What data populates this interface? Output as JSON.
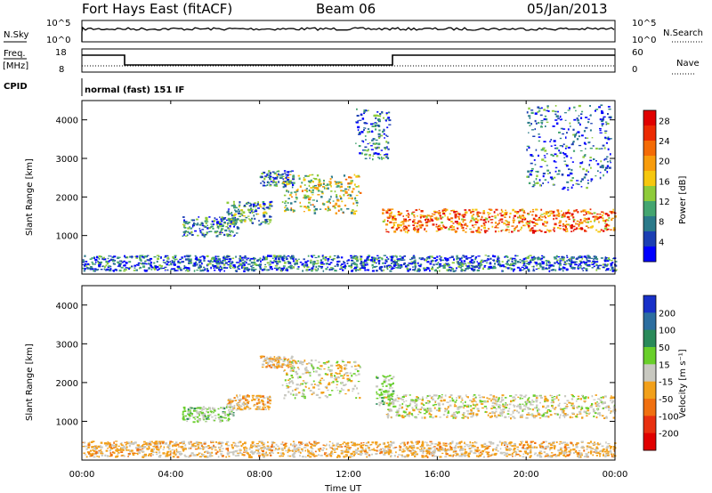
{
  "header": {
    "station": "Fort Hays East (fitACF)",
    "beam": "Beam 06",
    "date": "05/Jan/2013"
  },
  "sky_panel": {
    "left_label": "N.Sky",
    "right_label": "N.Search",
    "left_ticks": [
      "10^5",
      "10^0"
    ],
    "right_ticks": [
      "10^5",
      "10^0"
    ]
  },
  "freq_panel": {
    "left_label_top": "Freq.",
    "left_label_bottom": "[MHz]",
    "right_label": "Nave",
    "left_ticks": [
      "18",
      "8"
    ],
    "right_ticks": [
      "60",
      "0"
    ]
  },
  "cpid": {
    "label": "CPID",
    "value": "normal (fast) 151 IF"
  },
  "axes": {
    "ylabel": "Slant Range [km]",
    "xlabel": "Time UT",
    "xticks": [
      "00:00",
      "04:00",
      "08:00",
      "12:00",
      "16:00",
      "20:00",
      "00:00"
    ],
    "yticks": [
      "1000",
      "2000",
      "3000",
      "4000"
    ]
  },
  "chart_data": [
    {
      "type": "heatmap",
      "name": "power",
      "x_range_hours": [
        0,
        24
      ],
      "ylim": [
        0,
        4500
      ],
      "colorbar": {
        "label": "Power [dB]",
        "ticks": [
          "4",
          "8",
          "12",
          "16",
          "20",
          "24",
          "28"
        ],
        "range": [
          0,
          30
        ],
        "colors": [
          "#0000ff",
          "#1c3fb3",
          "#2b7a8a",
          "#44a570",
          "#8ecb3a",
          "#f6c70e",
          "#f89c0c",
          "#f46b06",
          "#ec2a02",
          "#e00000"
        ]
      },
      "echo_regions": [
        {
          "t": [
            4.5,
            7.0
          ],
          "range": [
            1000,
            1500
          ],
          "power": 8
        },
        {
          "t": [
            6.5,
            8.5
          ],
          "range": [
            1300,
            1900
          ],
          "power": 9
        },
        {
          "t": [
            8.0,
            9.5
          ],
          "range": [
            2300,
            2700
          ],
          "power": 8
        },
        {
          "t": [
            9.0,
            12.5
          ],
          "range": [
            1600,
            2600
          ],
          "power": 14
        },
        {
          "t": [
            12.3,
            13.8
          ],
          "range": [
            3000,
            4300
          ],
          "power": 7
        },
        {
          "t": [
            13.5,
            24.0
          ],
          "range": [
            1100,
            1700
          ],
          "power": 22
        },
        {
          "t": [
            20.0,
            23.8
          ],
          "range": [
            2200,
            4400
          ],
          "power": 6
        },
        {
          "t": [
            0.0,
            24.0
          ],
          "range": [
            100,
            500
          ],
          "power": 6
        }
      ]
    },
    {
      "type": "heatmap",
      "name": "velocity",
      "x_range_hours": [
        0,
        24
      ],
      "ylim": [
        0,
        4500
      ],
      "colorbar": {
        "label": "Velocity [m s⁻¹]",
        "ticks": [
          "200",
          "100",
          "50",
          "15",
          "-15",
          "-50",
          "-100",
          "-200"
        ],
        "colors": [
          "#1830c8",
          "#2c6ea0",
          "#2a8a5a",
          "#69cf2a",
          "#c8c8c0",
          "#f2a01a",
          "#f07010",
          "#e83010",
          "#e00000"
        ]
      },
      "echo_regions": [
        {
          "t": [
            4.5,
            6.8
          ],
          "range": [
            1000,
            1400
          ],
          "velocity": 40
        },
        {
          "t": [
            6.5,
            8.5
          ],
          "range": [
            1300,
            1700
          ],
          "velocity": -40
        },
        {
          "t": [
            8.0,
            9.5
          ],
          "range": [
            2400,
            2700
          ],
          "velocity": -40
        },
        {
          "t": [
            9.0,
            12.5
          ],
          "range": [
            1600,
            2600
          ],
          "velocity": 0
        },
        {
          "t": [
            13.5,
            24.0
          ],
          "range": [
            1100,
            1700
          ],
          "velocity": 0
        },
        {
          "t": [
            13.2,
            14.0
          ],
          "range": [
            1400,
            2200
          ],
          "velocity": 40
        },
        {
          "t": [
            0.0,
            24.0
          ],
          "range": [
            100,
            500
          ],
          "velocity": -40
        }
      ]
    }
  ]
}
